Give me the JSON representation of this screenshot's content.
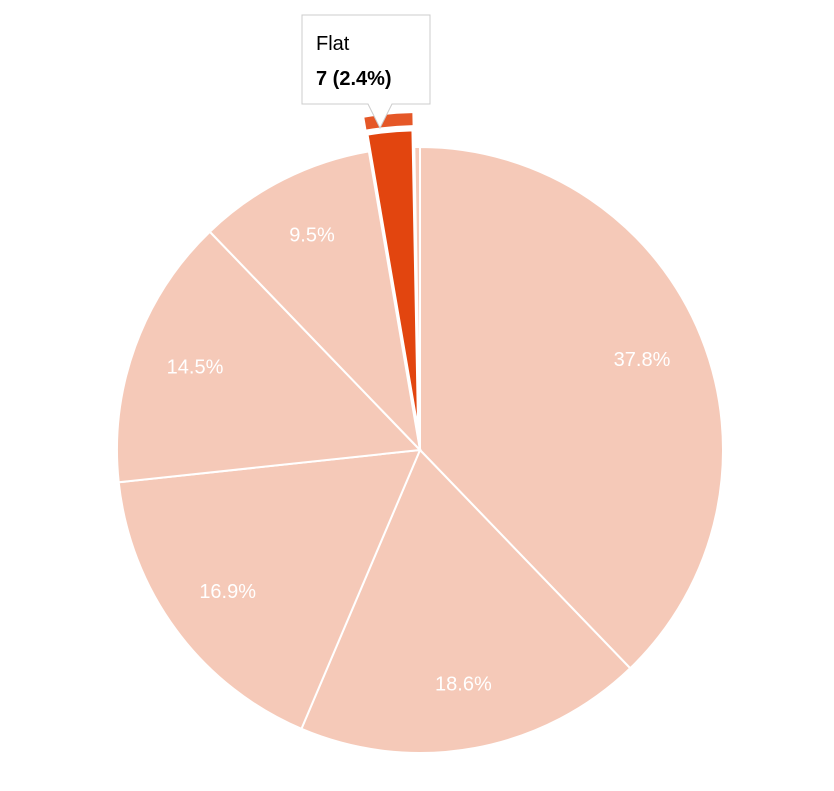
{
  "chart_data": {
    "type": "pie",
    "categories": [
      null,
      null,
      null,
      null,
      null,
      "Flat",
      null
    ],
    "values": [
      37.8,
      18.6,
      16.9,
      14.5,
      9.5,
      2.4,
      0.3
    ],
    "value_labels": [
      "37.8%",
      "18.6%",
      "16.9%",
      "14.5%",
      "9.5%",
      null,
      null
    ],
    "colors": [
      "#f5c9b8",
      "#f5c9b8",
      "#f5c9b8",
      "#f5c9b8",
      "#f5c9b8",
      "#e2450f",
      "#f5c9b8"
    ],
    "tooltip": {
      "text": "7 (2.4%)"
    }
  }
}
